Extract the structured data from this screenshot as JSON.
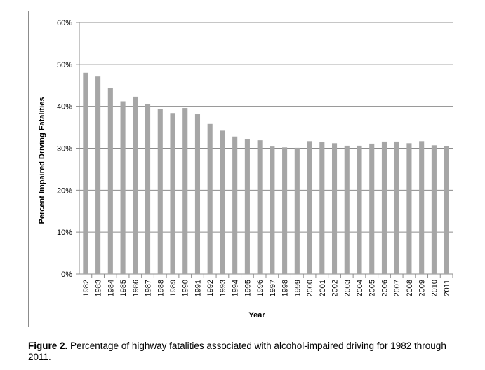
{
  "chart_data": {
    "type": "bar",
    "categories": [
      "1982",
      "1983",
      "1984",
      "1985",
      "1986",
      "1987",
      "1988",
      "1989",
      "1990",
      "1991",
      "1992",
      "1993",
      "1994",
      "1995",
      "1996",
      "1997",
      "1998",
      "1999",
      "2000",
      "2001",
      "2002",
      "2003",
      "2004",
      "2005",
      "2006",
      "2007",
      "2008",
      "2009",
      "2010",
      "2011"
    ],
    "values": [
      48.0,
      47.1,
      44.3,
      41.2,
      42.3,
      40.5,
      39.4,
      38.4,
      39.6,
      38.1,
      35.8,
      34.2,
      32.8,
      32.2,
      31.9,
      30.4,
      30.2,
      30.1,
      31.7,
      31.5,
      31.2,
      30.6,
      30.6,
      31.1,
      31.6,
      31.6,
      31.2,
      31.7,
      30.7,
      30.5
    ],
    "xlabel": "Year",
    "ylabel": "Percent Impaired Driving Fatalities",
    "yticks": [
      "0%",
      "10%",
      "20%",
      "30%",
      "40%",
      "50%",
      "60%"
    ],
    "ylim": [
      0,
      60
    ],
    "grid": true,
    "bar_color": "#a6a6a6",
    "grid_color": "#8c8c8c"
  },
  "caption": {
    "label": "Figure 2.",
    "text": " Percentage of highway fatalities associated with alcohol-impaired driving for 1982 through 2011."
  }
}
